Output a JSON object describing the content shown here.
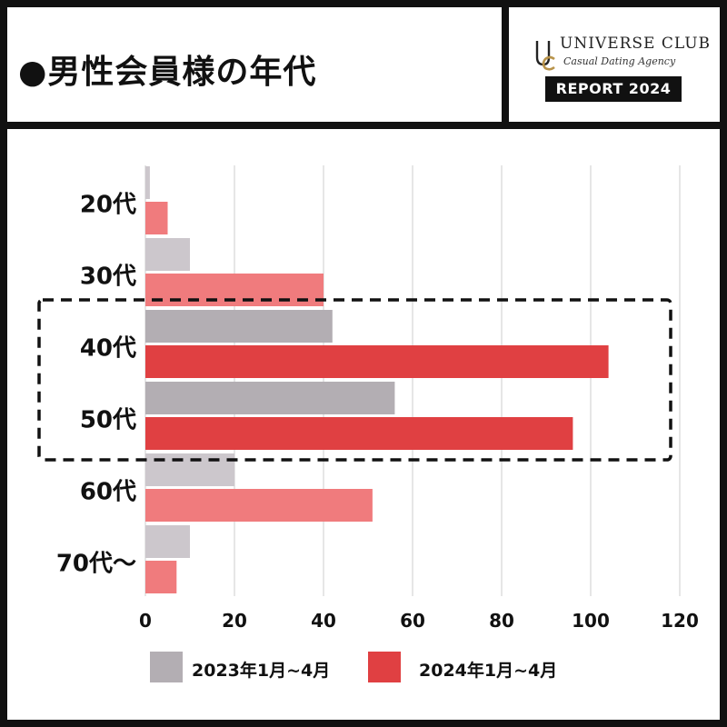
{
  "header": {
    "title": "●男性会員様の年代",
    "brand_name": "UNIVERSE CLUB",
    "brand_tagline": "Casual Dating Agency",
    "brand_badge": "REPORT 2024",
    "logo_icon": "uc-monogram-icon"
  },
  "colors": {
    "series_2023": "#b3aeb3",
    "series_2023_light": "#ccc7cc",
    "series_2024": "#e04042",
    "series_2024_light": "#f07b7d",
    "highlight_border": "#111111",
    "gridline": "#cccccc"
  },
  "chart_data": {
    "type": "bar",
    "orientation": "horizontal",
    "categories": [
      "20代",
      "30代",
      "40代",
      "50代",
      "60代",
      "70代〜"
    ],
    "series": [
      {
        "name": "2023年1月~4月",
        "values": [
          1,
          10,
          42,
          56,
          20,
          10
        ]
      },
      {
        "name": "2024年1月~4月",
        "values": [
          5,
          40,
          104,
          96,
          51,
          7
        ]
      }
    ],
    "xlim": [
      0,
      120
    ],
    "x_ticks": [
      0,
      20,
      40,
      60,
      80,
      100,
      120
    ],
    "grid": "vertical",
    "legend_position": "bottom",
    "highlighted_categories": [
      "40代",
      "50代"
    ]
  }
}
